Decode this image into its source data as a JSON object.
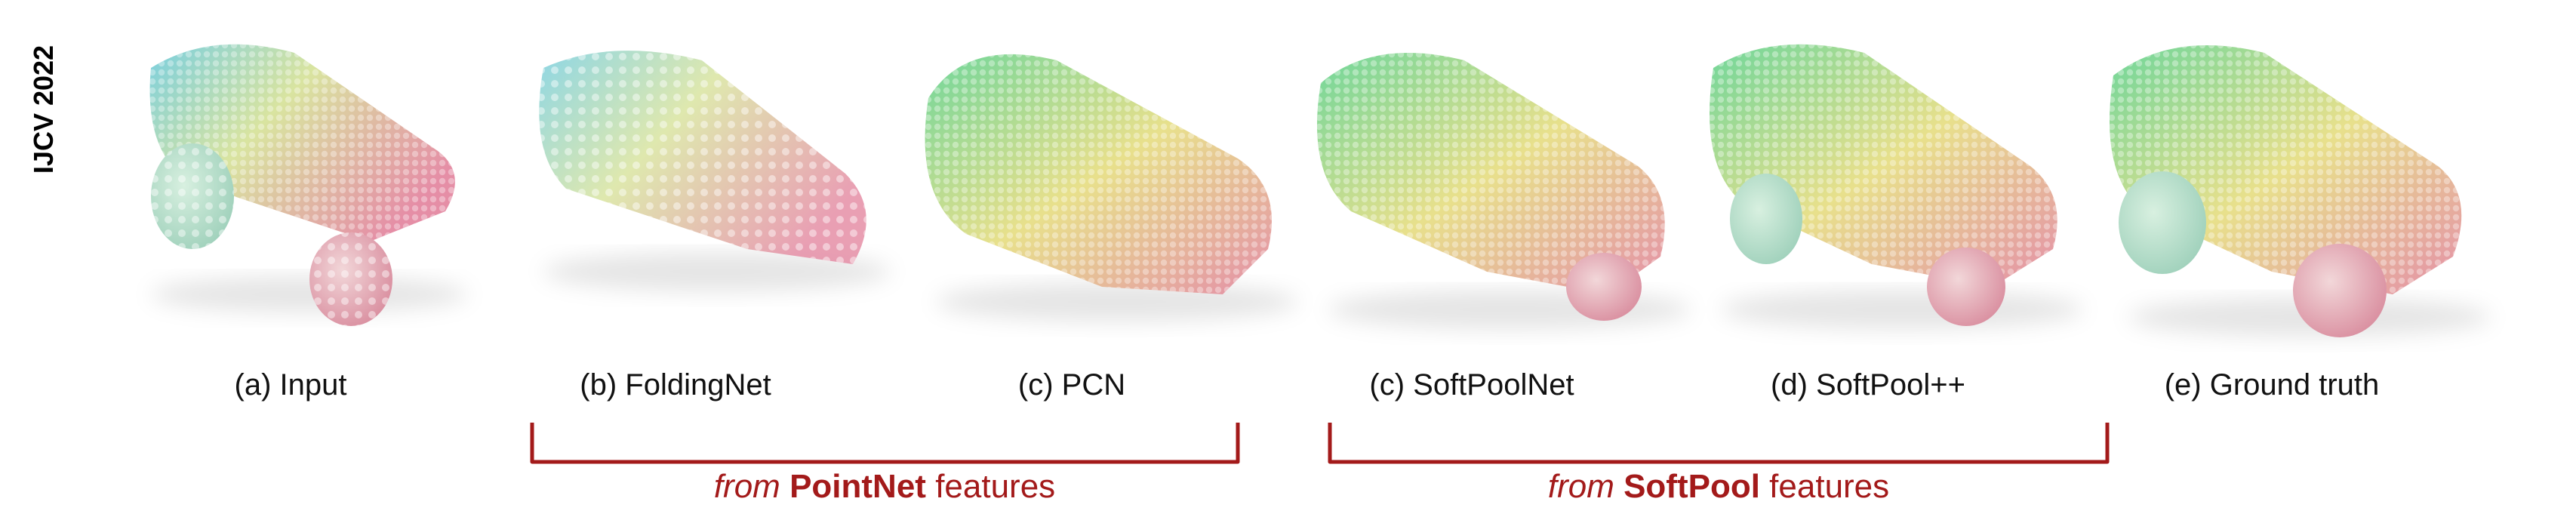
{
  "venue": "IJCV 2022",
  "panels": [
    {
      "label": "(a) Input",
      "method": "Input"
    },
    {
      "label": "(b) FoldingNet",
      "method": "FoldingNet"
    },
    {
      "label": "(c) PCN",
      "method": "PCN"
    },
    {
      "label": "(c) SoftPoolNet",
      "method": "SoftPoolNet"
    },
    {
      "label": "(d) SoftPool++",
      "method": "SoftPool++"
    },
    {
      "label": "(e) Ground truth",
      "method": "Ground truth"
    }
  ],
  "groups": [
    {
      "prefix": "from",
      "name": "PointNet",
      "suffix": "features"
    },
    {
      "prefix": "from",
      "name": "SoftPool",
      "suffix": "features"
    }
  ],
  "colors": {
    "bracket": "#a31a1a",
    "point_front": "#6fd69a",
    "point_mid": "#e8e08c",
    "point_back": "#e48fa8",
    "point_side": "#9bb8e6"
  }
}
